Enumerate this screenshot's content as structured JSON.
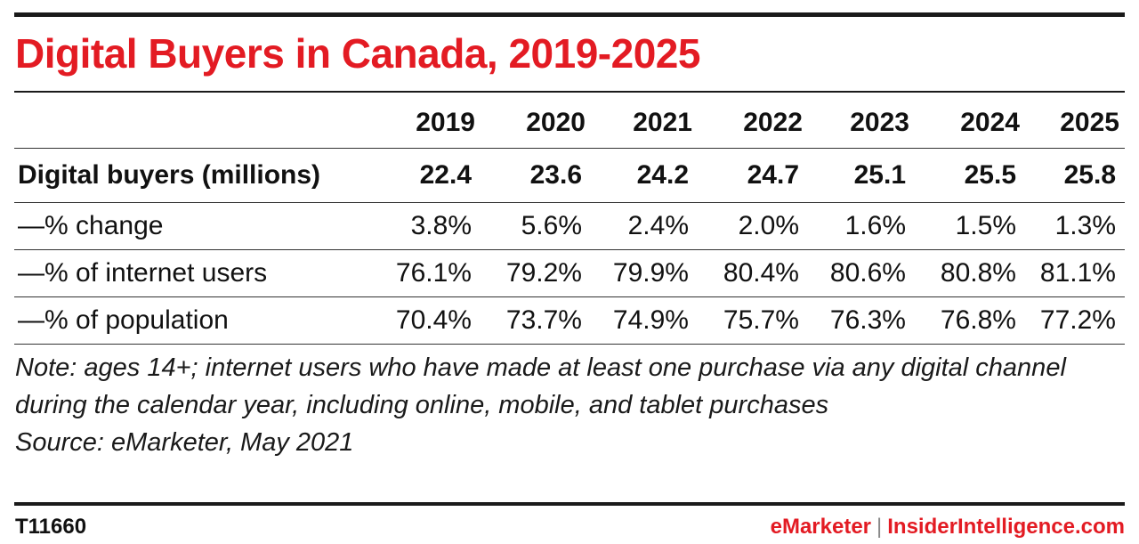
{
  "title": "Digital Buyers in Canada, 2019-2025",
  "chart_data": {
    "type": "table",
    "title": "Digital Buyers in Canada, 2019-2025",
    "columns": [
      "2019",
      "2020",
      "2021",
      "2022",
      "2023",
      "2024",
      "2025"
    ],
    "rows": [
      {
        "label": "Digital buyers (millions)",
        "bold": true,
        "values": [
          "22.4",
          "23.6",
          "24.2",
          "24.7",
          "25.1",
          "25.5",
          "25.8"
        ]
      },
      {
        "label": "—% change",
        "bold": false,
        "values": [
          "3.8%",
          "5.6%",
          "2.4%",
          "2.0%",
          "1.6%",
          "1.5%",
          "1.3%"
        ]
      },
      {
        "label": "—% of internet users",
        "bold": false,
        "values": [
          "76.1%",
          "79.2%",
          "79.9%",
          "80.4%",
          "80.6%",
          "80.8%",
          "81.1%"
        ]
      },
      {
        "label": "—% of population",
        "bold": false,
        "values": [
          "70.4%",
          "73.7%",
          "74.9%",
          "75.7%",
          "76.3%",
          "76.8%",
          "77.2%"
        ]
      }
    ]
  },
  "note": "Note: ages 14+; internet users who have made at least one purchase via any digital channel during the calendar year, including online, mobile, and tablet purchases",
  "source": "Source: eMarketer, May 2021",
  "footer": {
    "id": "T11660",
    "brand1": "eMarketer",
    "separator": "|",
    "brand2": "InsiderIntelligence.com"
  },
  "colors": {
    "accent": "#e31b23",
    "text": "#111111",
    "rule": "#1a1a1a"
  }
}
